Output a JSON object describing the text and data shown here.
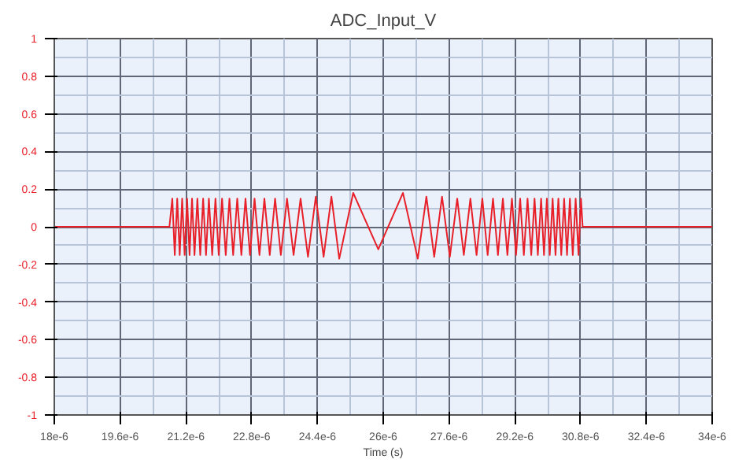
{
  "chart_data": {
    "type": "line",
    "title": "ADC_Input_V",
    "xlabel": "Time (s)",
    "xlim": [
      1.8e-05,
      3.4e-05
    ],
    "ylim": [
      -1,
      1
    ],
    "xticks": [
      {
        "value": 1.8e-05,
        "label": "18e-6"
      },
      {
        "value": 1.96e-05,
        "label": "19.6e-6"
      },
      {
        "value": 2.12e-05,
        "label": "21.2e-6"
      },
      {
        "value": 2.28e-05,
        "label": "22.8e-6"
      },
      {
        "value": 2.44e-05,
        "label": "24.4e-6"
      },
      {
        "value": 2.6e-05,
        "label": "26e-6"
      },
      {
        "value": 2.76e-05,
        "label": "27.6e-6"
      },
      {
        "value": 2.92e-05,
        "label": "29.2e-6"
      },
      {
        "value": 3.08e-05,
        "label": "30.8e-6"
      },
      {
        "value": 3.24e-05,
        "label": "32.4e-6"
      },
      {
        "value": 3.4e-05,
        "label": "34e-6"
      }
    ],
    "yticks": [
      -1,
      -0.8,
      -0.6,
      -0.4,
      -0.2,
      0,
      0.2,
      0.4,
      0.6,
      0.8,
      1
    ],
    "grid": true,
    "line_style": "solid",
    "series": [
      {
        "color": "#e8202a",
        "x": [
          1.8e-05,
          2.08e-05,
          2.087e-05,
          2.093e-05,
          2.099e-05,
          2.105e-05,
          2.111e-05,
          2.117e-05,
          2.123e-05,
          2.129e-05,
          2.135e-05,
          2.141e-05,
          2.148e-05,
          2.155e-05,
          2.162e-05,
          2.169e-05,
          2.176e-05,
          2.184e-05,
          2.192e-05,
          2.2e-05,
          2.208e-05,
          2.217e-05,
          2.226e-05,
          2.235e-05,
          2.245e-05,
          2.255e-05,
          2.265e-05,
          2.276e-05,
          2.287e-05,
          2.299e-05,
          2.311e-05,
          2.324e-05,
          2.337e-05,
          2.351e-05,
          2.366e-05,
          2.382e-05,
          2.399e-05,
          2.417e-05,
          2.436e-05,
          2.455e-05,
          2.474e-05,
          2.493e-05,
          2.527e-05,
          2.588e-05,
          2.648e-05,
          2.684e-05,
          2.705e-05,
          2.724e-05,
          2.743e-05,
          2.762e-05,
          2.78e-05,
          2.796e-05,
          2.812e-05,
          2.827e-05,
          2.841e-05,
          2.854e-05,
          2.867e-05,
          2.879e-05,
          2.891e-05,
          2.902e-05,
          2.913e-05,
          2.923e-05,
          2.933e-05,
          2.942e-05,
          2.951e-05,
          2.96e-05,
          2.968e-05,
          2.976e-05,
          2.984e-05,
          2.991e-05,
          2.998e-05,
          3.005e-05,
          3.012e-05,
          3.019e-05,
          3.026e-05,
          3.033e-05,
          3.04e-05,
          3.047e-05,
          3.054e-05,
          3.061e-05,
          3.068e-05,
          3.075e-05,
          3.081e-05,
          3.085e-05,
          3.4e-05
        ],
        "values": [
          0,
          0,
          0.15,
          -0.15,
          0.15,
          -0.15,
          0.15,
          -0.15,
          0.15,
          -0.15,
          0.15,
          -0.15,
          0.15,
          -0.15,
          0.15,
          -0.15,
          0.15,
          -0.15,
          0.15,
          -0.15,
          0.15,
          -0.15,
          0.15,
          -0.15,
          0.15,
          -0.15,
          0.15,
          -0.15,
          0.15,
          -0.15,
          0.15,
          -0.15,
          0.15,
          -0.15,
          0.15,
          -0.15,
          0.15,
          -0.16,
          0.16,
          -0.16,
          0.16,
          -0.17,
          0.18,
          -0.12,
          0.18,
          -0.17,
          0.16,
          -0.16,
          0.16,
          -0.16,
          0.15,
          -0.15,
          0.15,
          -0.15,
          0.15,
          -0.15,
          0.15,
          -0.15,
          0.15,
          -0.15,
          0.15,
          -0.15,
          0.15,
          -0.15,
          0.15,
          -0.15,
          0.15,
          -0.15,
          0.15,
          -0.15,
          0.15,
          -0.15,
          0.15,
          -0.15,
          0.15,
          -0.15,
          0.15,
          -0.15,
          0.15,
          -0.15,
          0.15,
          -0.15,
          0.15,
          0,
          0
        ]
      }
    ]
  }
}
